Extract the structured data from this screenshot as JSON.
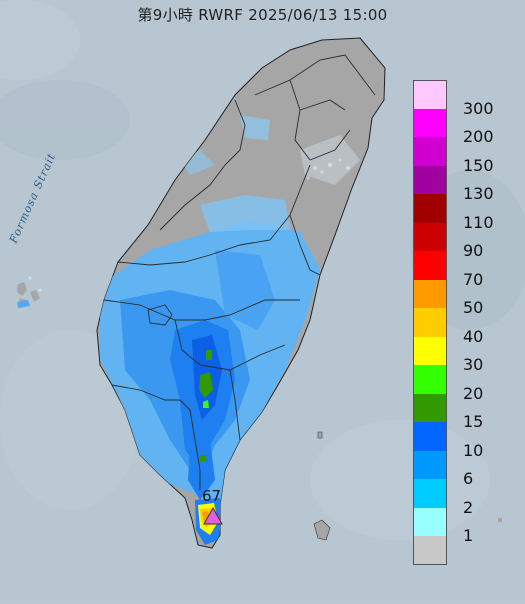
{
  "title": "第9小時  RWRF 2025/06/13 15:00",
  "map_labels": {
    "strait": "Formosa Strait"
  },
  "legend": {
    "levels": [
      {
        "label": "300",
        "color": "#ffc8ff"
      },
      {
        "label": "200",
        "color": "#ff00ff"
      },
      {
        "label": "150",
        "color": "#d000d0"
      },
      {
        "label": "130",
        "color": "#a000a0"
      },
      {
        "label": "110",
        "color": "#a00000"
      },
      {
        "label": "90",
        "color": "#cc0000"
      },
      {
        "label": "70",
        "color": "#ff0000"
      },
      {
        "label": "50",
        "color": "#ff9900"
      },
      {
        "label": "40",
        "color": "#ffcc00"
      },
      {
        "label": "30",
        "color": "#ffff00"
      },
      {
        "label": "20",
        "color": "#33ff00"
      },
      {
        "label": "15",
        "color": "#339900"
      },
      {
        "label": "10",
        "color": "#0066ff"
      },
      {
        "label": "6",
        "color": "#0099ff"
      },
      {
        "label": "2",
        "color": "#00ccff"
      },
      {
        "label": "1",
        "color": "#99ffff"
      },
      {
        "label": "",
        "color": "#c8c8c8"
      }
    ]
  },
  "max_value": {
    "label": "67",
    "marker": "triangle-icon",
    "marker_color": "#e060e0"
  },
  "colors": {
    "sea": "#b9c8d2",
    "land_no_rain": "#a6a6a6",
    "county_border": "#333333"
  }
}
